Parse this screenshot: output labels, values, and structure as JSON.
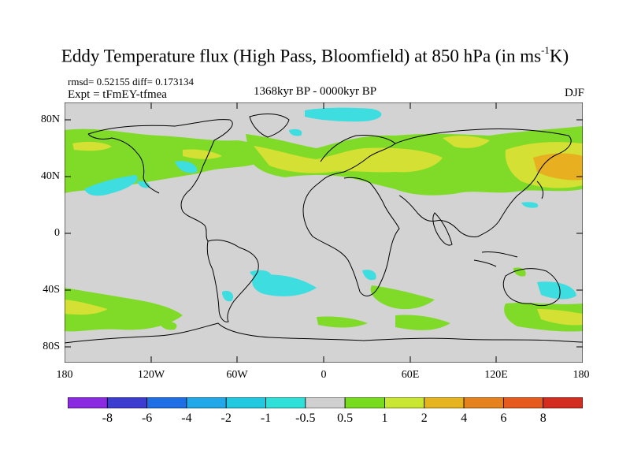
{
  "title": "Eddy Temperature flux (High Pass, Bloomfield) at 850 hPa (in ms",
  "title_sup": "-1",
  "title_end": "K)",
  "rmsd_text": "rmsd= 0.52155 diff= 0.173134",
  "expt_text": "Expt = tFmEY-tfmea",
  "period_text": "1368kyr BP - 0000kyr BP",
  "season_text": "DJF",
  "lat_labels": [
    "80N",
    "40N",
    "0",
    "40S",
    "80S"
  ],
  "lon_labels": [
    "180",
    "120W",
    "60W",
    "0",
    "60E",
    "120E",
    "180"
  ],
  "colorbar": {
    "labels": [
      "-8",
      "-6",
      "-4",
      "-2",
      "-1",
      "-0.5",
      "0.5",
      "1",
      "2",
      "4",
      "6",
      "8"
    ],
    "colors": [
      "#8a2be2",
      "#3c3cd0",
      "#1e6ee6",
      "#20a8e8",
      "#20c8e0",
      "#2ee0d8",
      "#d0d0d0",
      "#78dc1e",
      "#c8e632",
      "#e6b41e",
      "#e6821e",
      "#e65a1e",
      "#d22d1e"
    ]
  },
  "colors": {
    "ocean_land_neutral": "#d3d3d3",
    "green": "#7fdb27",
    "yellow": "#d4e033",
    "orange": "#e8b020",
    "cyan": "#3ddde0",
    "coast": "#000000"
  }
}
